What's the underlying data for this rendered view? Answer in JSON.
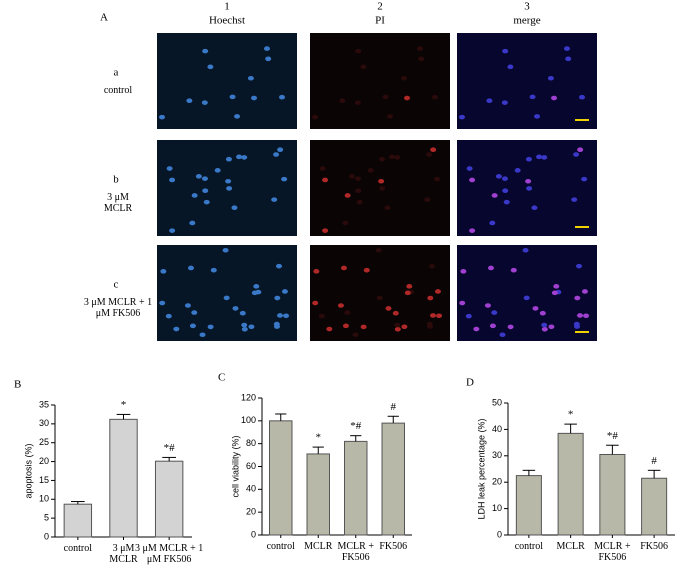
{
  "panel_a": {
    "label": "A",
    "columns": [
      {
        "number": "1",
        "name": "Hoechst"
      },
      {
        "number": "2",
        "name": "PI"
      },
      {
        "number": "3",
        "name": "merge"
      }
    ],
    "rows": [
      {
        "letter": "a",
        "name": "control"
      },
      {
        "letter": "b",
        "name": "3 μM MCLR"
      },
      {
        "letter": "c",
        "name": "3 μM MCLR + 1 μM FK506"
      }
    ]
  },
  "chart_data": [
    {
      "type": "bar",
      "panel": "B",
      "ylabel": "apoptosis (%)",
      "categories": [
        "control",
        "3 μM MCLR",
        "3 μM MCLR + 1 μM FK506"
      ],
      "values": [
        8.7,
        31.2,
        20.1
      ],
      "errors": [
        0.7,
        1.3,
        1.0
      ],
      "annotations": [
        null,
        "*",
        "*#"
      ],
      "color": "#d3d3d3",
      "ylim": [
        0,
        35
      ],
      "yticks": [
        0,
        5,
        10,
        15,
        20,
        25,
        30,
        35
      ]
    },
    {
      "type": "bar",
      "panel": "C",
      "ylabel": "cell viability (%)",
      "categories": [
        "control",
        "MCLR",
        "MCLR + FK506",
        "FK506"
      ],
      "values": [
        100,
        71,
        82,
        98
      ],
      "errors": [
        6,
        6,
        5,
        6
      ],
      "annotations": [
        null,
        "*",
        "*#",
        "#"
      ],
      "color": "#b8b8a8",
      "ylim": [
        0,
        120
      ],
      "yticks": [
        0,
        20,
        40,
        60,
        80,
        100,
        120
      ]
    },
    {
      "type": "bar",
      "panel": "D",
      "ylabel": "LDH leak percentage (%)",
      "categories": [
        "control",
        "MCLR",
        "MCLR + FK506",
        "FK506"
      ],
      "values": [
        22.5,
        38.5,
        30.5,
        21.5
      ],
      "errors": [
        2,
        3.5,
        3.5,
        3
      ],
      "annotations": [
        null,
        "*",
        "*#",
        "#"
      ],
      "color": "#b8b8a8",
      "ylim": [
        0,
        50
      ],
      "yticks": [
        0,
        10,
        20,
        30,
        40,
        50
      ]
    }
  ]
}
